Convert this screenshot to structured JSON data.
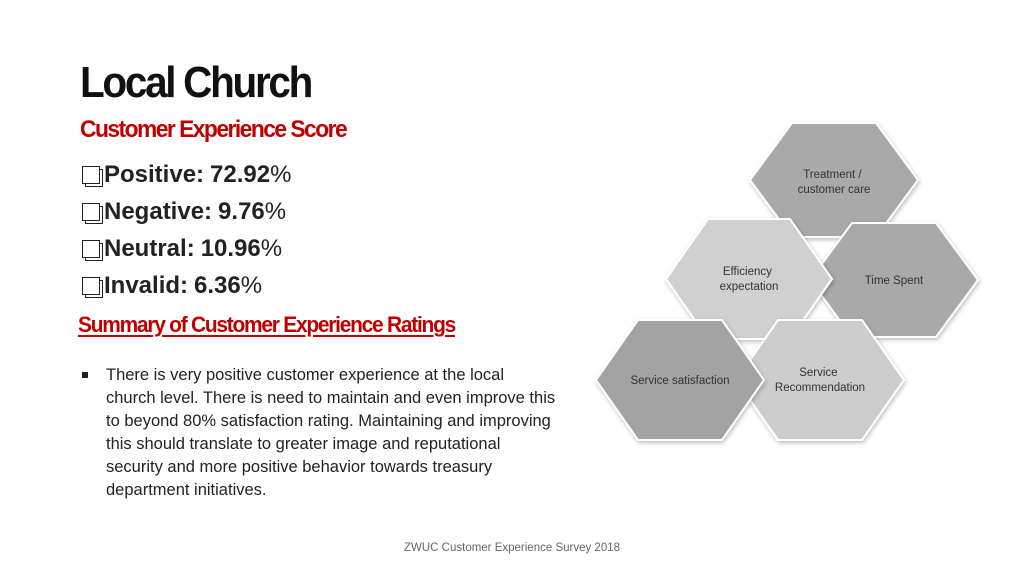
{
  "title": "Local Church",
  "subtitle": "Customer Experience Score",
  "scores": [
    {
      "label": "Positive:",
      "value": "72.92",
      "unit": "%"
    },
    {
      "label": "Negative:",
      "value": "9.76",
      "unit": "%"
    },
    {
      "label": "Neutral:",
      "value": "10.96",
      "unit": "%"
    },
    {
      "label": "Invalid:",
      "value": "6.36",
      "unit": "%"
    }
  ],
  "summary_heading": "Summary of Customer Experience Ratings",
  "summary_bullets": [
    "There is very positive customer experience at the local church level. There is need to maintain and even improve this to beyond 80% satisfaction rating. Maintaining and improving this should translate to greater image and reputational security and more positive behavior towards treasury department initiatives."
  ],
  "diagram": {
    "hexagons": [
      {
        "id": "treatment",
        "lines": [
          "Treatment /",
          "customer care"
        ],
        "color": "#a9a9a9"
      },
      {
        "id": "efficiency",
        "lines": [
          "Efficiency",
          "expectation"
        ],
        "color": "#d0d0d0"
      },
      {
        "id": "time",
        "lines": [
          "Time Spent"
        ],
        "color": "#a9a9a9"
      },
      {
        "id": "satisfaction",
        "lines": [
          "Service satisfaction"
        ],
        "color": "#a3a3a3"
      },
      {
        "id": "recommendation",
        "lines": [
          "Service",
          "Recommendation"
        ],
        "color": "#cdcdcd"
      }
    ]
  },
  "footer": "ZWUC Customer Experience Survey 2018"
}
